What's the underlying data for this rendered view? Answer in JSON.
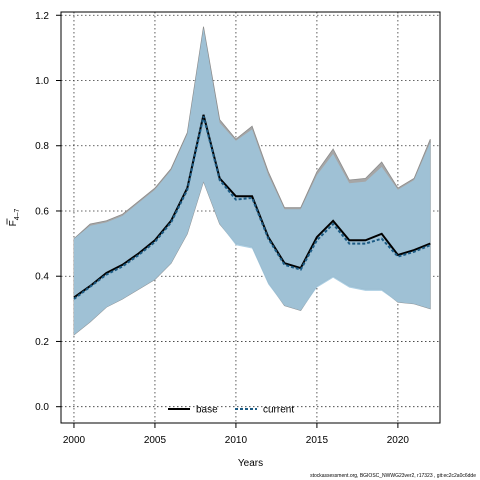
{
  "chart_data": {
    "type": "area",
    "xlabel": "Years",
    "ylabel_main": "F",
    "ylabel_sub": "4–7",
    "xlim": [
      1999.2,
      2022.6
    ],
    "ylim": [
      -0.05,
      1.21
    ],
    "xticks": [
      2000,
      2005,
      2010,
      2015,
      2020
    ],
    "yticks": [
      0.0,
      0.2,
      0.4,
      0.6,
      0.8,
      1.0,
      1.2
    ],
    "ytick_labels": [
      "0.0",
      "0.2",
      "0.4",
      "0.6",
      "0.8",
      "1.0",
      "1.2"
    ],
    "grid": true,
    "x": [
      2000,
      2001,
      2002,
      2003,
      2004,
      2005,
      2006,
      2007,
      2008,
      2009,
      2010,
      2011,
      2012,
      2013,
      2014,
      2015,
      2016,
      2017,
      2018,
      2019,
      2020,
      2021,
      2022
    ],
    "series": [
      {
        "name": "base",
        "color": "#000000",
        "band_color": "#a6a6a6",
        "lower": [
          0.22,
          0.26,
          0.305,
          0.33,
          0.36,
          0.39,
          0.44,
          0.53,
          0.69,
          0.56,
          0.5,
          0.49,
          0.38,
          0.31,
          0.295,
          0.37,
          0.4,
          0.37,
          0.36,
          0.36,
          0.32,
          0.315,
          0.3
        ],
        "mid": [
          0.335,
          0.37,
          0.41,
          0.435,
          0.47,
          0.51,
          0.57,
          0.67,
          0.895,
          0.7,
          0.645,
          0.645,
          0.52,
          0.44,
          0.425,
          0.52,
          0.57,
          0.51,
          0.51,
          0.53,
          0.465,
          0.48,
          0.5
        ],
        "upper": [
          0.515,
          0.56,
          0.57,
          0.59,
          0.63,
          0.67,
          0.73,
          0.84,
          1.165,
          0.88,
          0.82,
          0.86,
          0.72,
          0.61,
          0.61,
          0.72,
          0.79,
          0.695,
          0.7,
          0.75,
          0.67,
          0.7,
          0.82
        ]
      },
      {
        "name": "current",
        "color": "#1c5b84",
        "band_color": "#9ec6dd",
        "lower": [
          0.22,
          0.26,
          0.305,
          0.33,
          0.36,
          0.39,
          0.44,
          0.53,
          0.69,
          0.56,
          0.495,
          0.485,
          0.375,
          0.31,
          0.295,
          0.365,
          0.395,
          0.365,
          0.355,
          0.355,
          0.32,
          0.315,
          0.3
        ],
        "mid": [
          0.33,
          0.368,
          0.405,
          0.43,
          0.465,
          0.505,
          0.565,
          0.665,
          0.89,
          0.695,
          0.635,
          0.64,
          0.515,
          0.435,
          0.42,
          0.51,
          0.56,
          0.5,
          0.5,
          0.515,
          0.46,
          0.475,
          0.495
        ],
        "upper": [
          0.515,
          0.555,
          0.565,
          0.585,
          0.625,
          0.665,
          0.725,
          0.835,
          1.16,
          0.87,
          0.815,
          0.85,
          0.71,
          0.605,
          0.605,
          0.71,
          0.775,
          0.685,
          0.69,
          0.735,
          0.665,
          0.695,
          0.81
        ]
      }
    ],
    "legend": {
      "position": "bottom-center",
      "entries": [
        "base",
        "current"
      ]
    }
  },
  "footer": {
    "note": "stockassessment.org, BGIOSC_NWWG23ver2, r17323 , git:ec2c2a0c6dde"
  }
}
